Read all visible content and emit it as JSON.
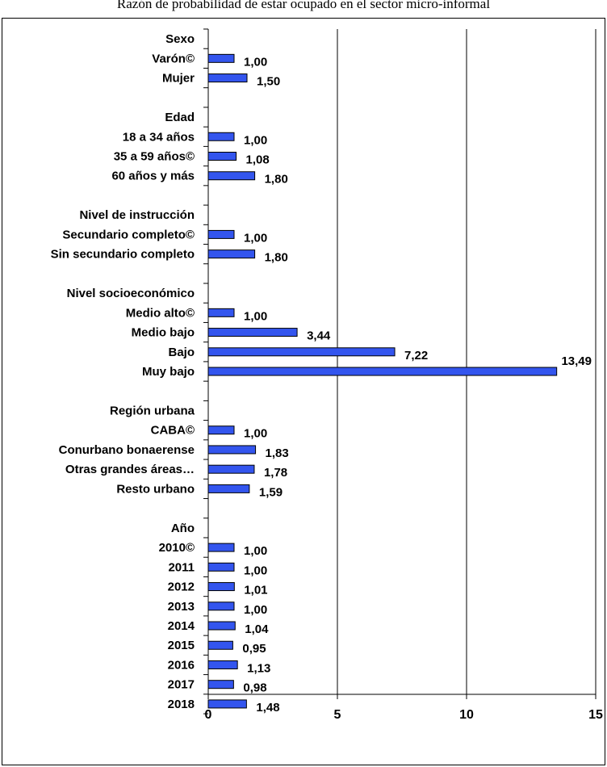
{
  "title": "Razón de probabilidad de estar ocupado en el sector micro-informal",
  "chart_data": {
    "type": "bar",
    "orientation": "horizontal",
    "title": "Razón de probabilidad de estar ocupado en el sector micro-informal",
    "xlim": [
      0,
      15
    ],
    "xticks": [
      "0",
      "5",
      "10",
      "15"
    ],
    "grid": true,
    "bar_color": "#3355ee",
    "rows": [
      {
        "label": "Sexo",
        "header": true
      },
      {
        "label": "Varón©",
        "value": 1.0,
        "value_label": "1,00"
      },
      {
        "label": "Mujer",
        "value": 1.5,
        "value_label": "1,50"
      },
      {
        "label": "",
        "spacer": true
      },
      {
        "label": "Edad",
        "header": true
      },
      {
        "label": "18 a 34 años",
        "value": 1.0,
        "value_label": "1,00"
      },
      {
        "label": "35 a 59 años©",
        "value": 1.08,
        "value_label": "1,08"
      },
      {
        "label": "60 años y más",
        "value": 1.8,
        "value_label": "1,80"
      },
      {
        "label": "",
        "spacer": true
      },
      {
        "label": "Nivel de instrucción",
        "header": true
      },
      {
        "label": "Secundario completo©",
        "value": 1.0,
        "value_label": "1,00"
      },
      {
        "label": "Sin secundario completo",
        "value": 1.8,
        "value_label": "1,80"
      },
      {
        "label": "",
        "spacer": true
      },
      {
        "label": "Nivel socioeconómico",
        "header": true
      },
      {
        "label": "Medio alto©",
        "value": 1.0,
        "value_label": "1,00"
      },
      {
        "label": "Medio bajo",
        "value": 3.44,
        "value_label": "3,44"
      },
      {
        "label": "Bajo",
        "value": 7.22,
        "value_label": "7,22"
      },
      {
        "label": "Muy bajo",
        "value": 13.49,
        "value_label": "13,49"
      },
      {
        "label": "",
        "spacer": true
      },
      {
        "label": "Región urbana",
        "header": true
      },
      {
        "label": "CABA©",
        "value": 1.0,
        "value_label": "1,00"
      },
      {
        "label": "Conurbano bonaerense",
        "value": 1.83,
        "value_label": "1,83"
      },
      {
        "label": "Otras grandes áreas…",
        "value": 1.78,
        "value_label": "1,78"
      },
      {
        "label": "Resto urbano",
        "value": 1.59,
        "value_label": "1,59"
      },
      {
        "label": "",
        "spacer": true
      },
      {
        "label": "Año",
        "header": true
      },
      {
        "label": "2010©",
        "value": 1.0,
        "value_label": "1,00"
      },
      {
        "label": "2011",
        "value": 1.0,
        "value_label": "1,00"
      },
      {
        "label": "2012",
        "value": 1.01,
        "value_label": "1,01"
      },
      {
        "label": "2013",
        "value": 1.0,
        "value_label": "1,00"
      },
      {
        "label": "2014",
        "value": 1.04,
        "value_label": "1,04"
      },
      {
        "label": "2015",
        "value": 0.95,
        "value_label": "0,95"
      },
      {
        "label": "2016",
        "value": 1.13,
        "value_label": "1,13"
      },
      {
        "label": "2017",
        "value": 0.98,
        "value_label": "0,98"
      },
      {
        "label": "2018",
        "value": 1.48,
        "value_label": "1,48"
      }
    ]
  }
}
